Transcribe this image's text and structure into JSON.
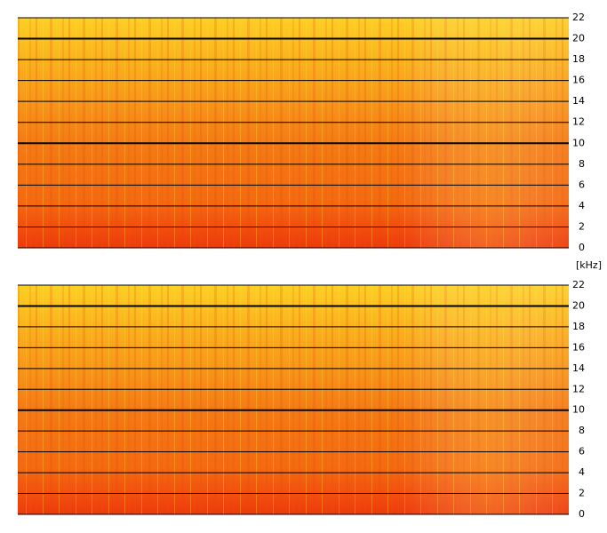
{
  "chart_data": [
    {
      "type": "spectrogram",
      "ylabel": "[kHz]",
      "ylim": [
        0,
        22
      ],
      "yticks": [
        0,
        2,
        4,
        6,
        8,
        10,
        12,
        14,
        16,
        18,
        20,
        22
      ]
    },
    {
      "type": "spectrogram",
      "ylim": [
        0,
        22
      ],
      "yticks": [
        0,
        2,
        4,
        6,
        8,
        10,
        12,
        14,
        16,
        18,
        20,
        22
      ]
    }
  ]
}
